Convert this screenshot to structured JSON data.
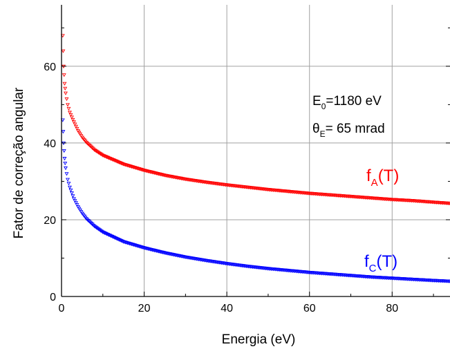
{
  "chart_data": {
    "type": "scatter",
    "title": "",
    "xlabel": "Energia (eV)",
    "ylabel": "Fator de correção angular",
    "xlim": [
      0,
      94
    ],
    "ylim": [
      0,
      76
    ],
    "x_ticks": [
      0,
      20,
      40,
      60,
      80
    ],
    "y_ticks": [
      0,
      20,
      40,
      60
    ],
    "grid": true,
    "annotations": {
      "line1": {
        "base": "E",
        "sub": "0",
        "rest": "=1180 eV"
      },
      "line2": {
        "base": "θ",
        "sub": "E",
        "rest": "= 65 mrad"
      }
    },
    "series": [
      {
        "name": "f_A(T)",
        "label_base": "f",
        "label_sub": "A",
        "label_rest": "(T)",
        "color": "#ff0000",
        "x": [
          0.3,
          0.5,
          0.75,
          1,
          1.5,
          2,
          3,
          4,
          5,
          6,
          8,
          10,
          15,
          20,
          25,
          30,
          35,
          40,
          45,
          50,
          55,
          60,
          65,
          70,
          75,
          80,
          85,
          90,
          94
        ],
        "y": [
          68,
          60,
          55.5,
          53,
          50,
          48,
          45.5,
          43.2,
          41.5,
          40.2,
          38.2,
          36.8,
          34.5,
          32.9,
          31.6,
          30.6,
          29.8,
          29.1,
          28.5,
          27.9,
          27.4,
          26.9,
          26.5,
          26.1,
          25.7,
          25.3,
          25.0,
          24.6,
          24.3
        ]
      },
      {
        "name": "f_C(T)",
        "label_base": "f",
        "label_sub": "C",
        "label_rest": "(T)",
        "color": "#0000ff",
        "x": [
          0.3,
          0.5,
          0.75,
          1,
          1.5,
          2,
          3,
          4,
          5,
          6,
          8,
          10,
          15,
          20,
          25,
          30,
          35,
          40,
          45,
          50,
          55,
          60,
          65,
          70,
          75,
          80,
          85,
          90,
          94
        ],
        "y": [
          46,
          40,
          36,
          33.5,
          30.5,
          28.5,
          25.5,
          23.4,
          21.7,
          20.3,
          18.3,
          16.8,
          14.3,
          12.7,
          11.4,
          10.3,
          9.4,
          8.6,
          7.9,
          7.3,
          6.8,
          6.3,
          5.9,
          5.5,
          5.1,
          4.8,
          4.5,
          4.2,
          4.0
        ]
      }
    ]
  }
}
